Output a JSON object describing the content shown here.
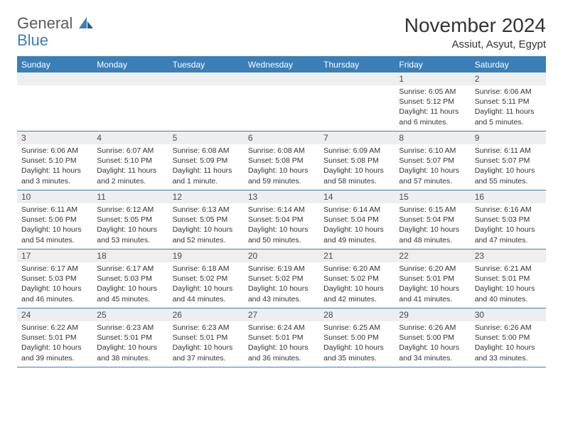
{
  "brand": {
    "general": "General",
    "blue": "Blue"
  },
  "title": "November 2024",
  "subtitle": "Assiut, Asyut, Egypt",
  "colors": {
    "accent": "#3b7fb8",
    "header_bg": "#3b7fb8",
    "daynum_bg": "#eceeef",
    "text": "#333333",
    "background": "#ffffff"
  },
  "day_labels": [
    "Sunday",
    "Monday",
    "Tuesday",
    "Wednesday",
    "Thursday",
    "Friday",
    "Saturday"
  ],
  "weeks": [
    [
      {
        "n": "",
        "lines": [
          "",
          "",
          "",
          ""
        ]
      },
      {
        "n": "",
        "lines": [
          "",
          "",
          "",
          ""
        ]
      },
      {
        "n": "",
        "lines": [
          "",
          "",
          "",
          ""
        ]
      },
      {
        "n": "",
        "lines": [
          "",
          "",
          "",
          ""
        ]
      },
      {
        "n": "",
        "lines": [
          "",
          "",
          "",
          ""
        ]
      },
      {
        "n": "1",
        "lines": [
          "Sunrise: 6:05 AM",
          "Sunset: 5:12 PM",
          "Daylight: 11 hours",
          "and 6 minutes."
        ]
      },
      {
        "n": "2",
        "lines": [
          "Sunrise: 6:06 AM",
          "Sunset: 5:11 PM",
          "Daylight: 11 hours",
          "and 5 minutes."
        ]
      }
    ],
    [
      {
        "n": "3",
        "lines": [
          "Sunrise: 6:06 AM",
          "Sunset: 5:10 PM",
          "Daylight: 11 hours",
          "and 3 minutes."
        ]
      },
      {
        "n": "4",
        "lines": [
          "Sunrise: 6:07 AM",
          "Sunset: 5:10 PM",
          "Daylight: 11 hours",
          "and 2 minutes."
        ]
      },
      {
        "n": "5",
        "lines": [
          "Sunrise: 6:08 AM",
          "Sunset: 5:09 PM",
          "Daylight: 11 hours",
          "and 1 minute."
        ]
      },
      {
        "n": "6",
        "lines": [
          "Sunrise: 6:08 AM",
          "Sunset: 5:08 PM",
          "Daylight: 10 hours",
          "and 59 minutes."
        ]
      },
      {
        "n": "7",
        "lines": [
          "Sunrise: 6:09 AM",
          "Sunset: 5:08 PM",
          "Daylight: 10 hours",
          "and 58 minutes."
        ]
      },
      {
        "n": "8",
        "lines": [
          "Sunrise: 6:10 AM",
          "Sunset: 5:07 PM",
          "Daylight: 10 hours",
          "and 57 minutes."
        ]
      },
      {
        "n": "9",
        "lines": [
          "Sunrise: 6:11 AM",
          "Sunset: 5:07 PM",
          "Daylight: 10 hours",
          "and 55 minutes."
        ]
      }
    ],
    [
      {
        "n": "10",
        "lines": [
          "Sunrise: 6:11 AM",
          "Sunset: 5:06 PM",
          "Daylight: 10 hours",
          "and 54 minutes."
        ]
      },
      {
        "n": "11",
        "lines": [
          "Sunrise: 6:12 AM",
          "Sunset: 5:05 PM",
          "Daylight: 10 hours",
          "and 53 minutes."
        ]
      },
      {
        "n": "12",
        "lines": [
          "Sunrise: 6:13 AM",
          "Sunset: 5:05 PM",
          "Daylight: 10 hours",
          "and 52 minutes."
        ]
      },
      {
        "n": "13",
        "lines": [
          "Sunrise: 6:14 AM",
          "Sunset: 5:04 PM",
          "Daylight: 10 hours",
          "and 50 minutes."
        ]
      },
      {
        "n": "14",
        "lines": [
          "Sunrise: 6:14 AM",
          "Sunset: 5:04 PM",
          "Daylight: 10 hours",
          "and 49 minutes."
        ]
      },
      {
        "n": "15",
        "lines": [
          "Sunrise: 6:15 AM",
          "Sunset: 5:04 PM",
          "Daylight: 10 hours",
          "and 48 minutes."
        ]
      },
      {
        "n": "16",
        "lines": [
          "Sunrise: 6:16 AM",
          "Sunset: 5:03 PM",
          "Daylight: 10 hours",
          "and 47 minutes."
        ]
      }
    ],
    [
      {
        "n": "17",
        "lines": [
          "Sunrise: 6:17 AM",
          "Sunset: 5:03 PM",
          "Daylight: 10 hours",
          "and 46 minutes."
        ]
      },
      {
        "n": "18",
        "lines": [
          "Sunrise: 6:17 AM",
          "Sunset: 5:03 PM",
          "Daylight: 10 hours",
          "and 45 minutes."
        ]
      },
      {
        "n": "19",
        "lines": [
          "Sunrise: 6:18 AM",
          "Sunset: 5:02 PM",
          "Daylight: 10 hours",
          "and 44 minutes."
        ]
      },
      {
        "n": "20",
        "lines": [
          "Sunrise: 6:19 AM",
          "Sunset: 5:02 PM",
          "Daylight: 10 hours",
          "and 43 minutes."
        ]
      },
      {
        "n": "21",
        "lines": [
          "Sunrise: 6:20 AM",
          "Sunset: 5:02 PM",
          "Daylight: 10 hours",
          "and 42 minutes."
        ]
      },
      {
        "n": "22",
        "lines": [
          "Sunrise: 6:20 AM",
          "Sunset: 5:01 PM",
          "Daylight: 10 hours",
          "and 41 minutes."
        ]
      },
      {
        "n": "23",
        "lines": [
          "Sunrise: 6:21 AM",
          "Sunset: 5:01 PM",
          "Daylight: 10 hours",
          "and 40 minutes."
        ]
      }
    ],
    [
      {
        "n": "24",
        "lines": [
          "Sunrise: 6:22 AM",
          "Sunset: 5:01 PM",
          "Daylight: 10 hours",
          "and 39 minutes."
        ]
      },
      {
        "n": "25",
        "lines": [
          "Sunrise: 6:23 AM",
          "Sunset: 5:01 PM",
          "Daylight: 10 hours",
          "and 38 minutes."
        ]
      },
      {
        "n": "26",
        "lines": [
          "Sunrise: 6:23 AM",
          "Sunset: 5:01 PM",
          "Daylight: 10 hours",
          "and 37 minutes."
        ]
      },
      {
        "n": "27",
        "lines": [
          "Sunrise: 6:24 AM",
          "Sunset: 5:01 PM",
          "Daylight: 10 hours",
          "and 36 minutes."
        ]
      },
      {
        "n": "28",
        "lines": [
          "Sunrise: 6:25 AM",
          "Sunset: 5:00 PM",
          "Daylight: 10 hours",
          "and 35 minutes."
        ]
      },
      {
        "n": "29",
        "lines": [
          "Sunrise: 6:26 AM",
          "Sunset: 5:00 PM",
          "Daylight: 10 hours",
          "and 34 minutes."
        ]
      },
      {
        "n": "30",
        "lines": [
          "Sunrise: 6:26 AM",
          "Sunset: 5:00 PM",
          "Daylight: 10 hours",
          "and 33 minutes."
        ]
      }
    ]
  ]
}
